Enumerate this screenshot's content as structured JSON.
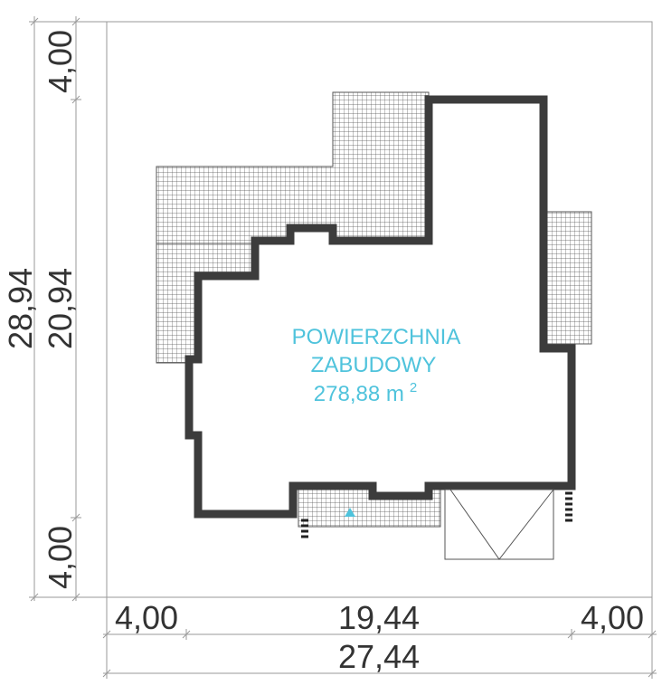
{
  "area_label": {
    "line1": "POWIERZCHNIA",
    "line2": "ZABUDOWY",
    "value": "278,88 m",
    "unit_sup": "2"
  },
  "dimensions": {
    "left": {
      "total": "28,94",
      "top": "4,00",
      "middle": "20,94",
      "bottom": "4,00"
    },
    "bottom": {
      "total": "27,44",
      "left": "4,00",
      "middle": "19,44",
      "right": "4,00"
    }
  },
  "colors": {
    "wall": "#3c3c3c",
    "label": "#4fc3dc",
    "dimension": "#333333",
    "hatch": "#555555",
    "outline": "#9a9a9a"
  },
  "icons": {
    "entrance": "entrance-triangle-icon"
  }
}
